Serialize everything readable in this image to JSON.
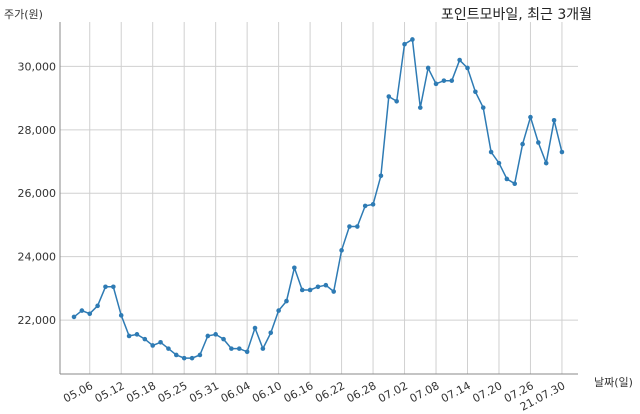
{
  "chart_data": {
    "type": "line",
    "title": "포인트모바일, 최근 3개월",
    "ylabel": "주가(원)",
    "xlabel": "날짜(일)",
    "ylim": [
      20300,
      31400
    ],
    "y_ticks": [
      22000,
      24000,
      26000,
      28000,
      30000
    ],
    "y_tick_labels": [
      "22,000",
      "24,000",
      "26,000",
      "28,000",
      "30,000"
    ],
    "x_tick_labels": [
      "05.06",
      "05.12",
      "05.18",
      "05.25",
      "05.31",
      "06.04",
      "06.10",
      "06.16",
      "06.22",
      "06.28",
      "07.02",
      "07.08",
      "07.14",
      "07.20",
      "07.26",
      "21.07.30"
    ],
    "x_tick_index": [
      2,
      6,
      10,
      14,
      18,
      22,
      26,
      30,
      34,
      38,
      42,
      46,
      50,
      54,
      58,
      62
    ],
    "grid": true,
    "line_color": "#2e7bb4",
    "series": [
      {
        "values": [
          22100,
          22300,
          22200,
          22450,
          23050,
          23050,
          22150,
          21500,
          21550,
          21400,
          21200,
          21300,
          21100,
          20900,
          20800,
          20800,
          20900,
          21500,
          21550,
          21400,
          21100,
          21100,
          21000,
          21750,
          21100,
          21600,
          22300,
          22600,
          23650,
          22950,
          22950,
          23050,
          23100,
          22900,
          24200,
          24950,
          24950,
          25600,
          25650,
          26550,
          29050,
          28900,
          30700,
          30850,
          28700,
          29950,
          29450,
          29550,
          29550,
          30200,
          29950,
          29200,
          28700,
          27300,
          26950,
          26450,
          26300,
          27550,
          28400,
          27600,
          26950,
          28300,
          27300
        ]
      }
    ]
  }
}
